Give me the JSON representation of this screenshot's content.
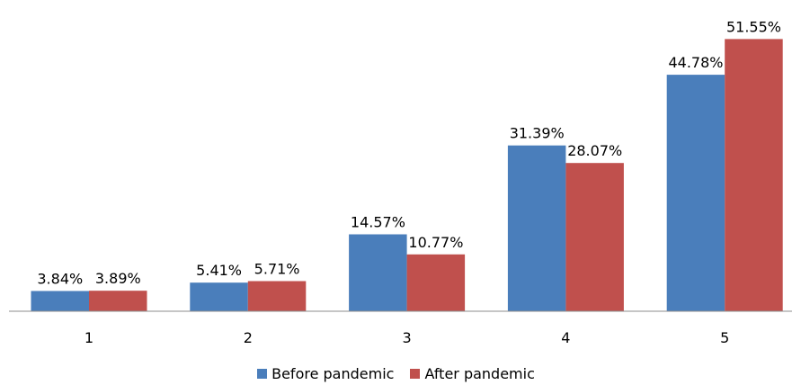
{
  "chart_data": {
    "type": "bar",
    "title": "",
    "xlabel": "",
    "ylabel": "",
    "categories": [
      "1",
      "2",
      "3",
      "4",
      "5"
    ],
    "series": [
      {
        "name": "Before pandemic",
        "color": "#4a7ebb",
        "values": [
          3.84,
          5.41,
          14.57,
          31.39,
          44.78
        ],
        "labels": [
          "3.84%",
          "5.41%",
          "14.57%",
          "31.39%",
          "44.78%"
        ]
      },
      {
        "name": "After pandemic",
        "color": "#c0504d",
        "values": [
          3.89,
          5.71,
          10.77,
          28.07,
          51.55
        ],
        "labels": [
          "3.89%",
          "5.71%",
          "10.77%",
          "28.07%",
          "51.55%"
        ]
      }
    ],
    "ylim": [
      0,
      52
    ],
    "grid": false,
    "legend_position": "bottom"
  }
}
